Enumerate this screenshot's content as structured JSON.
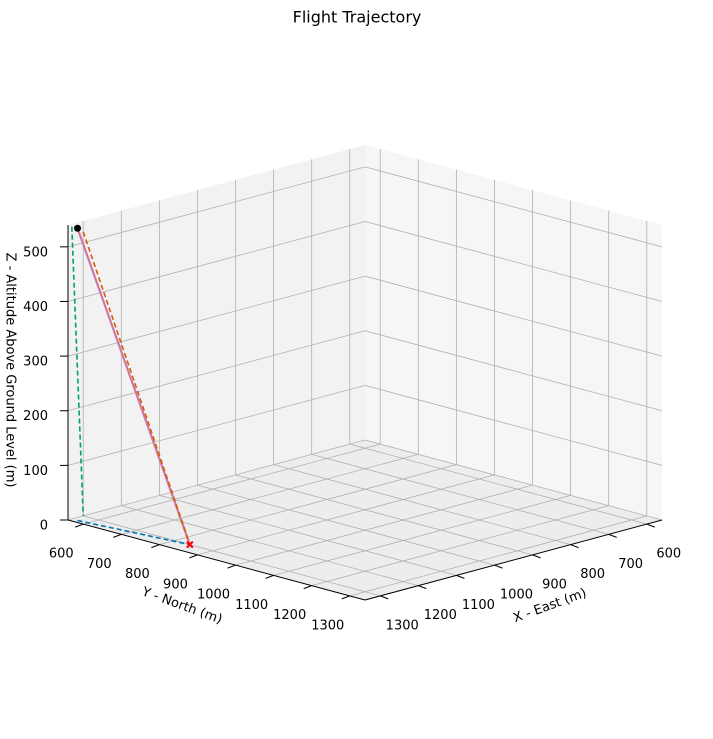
{
  "chart_data": {
    "type": "line3d",
    "title": "Flight Trajectory",
    "xlabel": "X - East (m)",
    "ylabel": "Y - North (m)",
    "zlabel": "Z - Altitude Above Ground Level (m)",
    "xlim": [
      560,
      1340
    ],
    "ylim": [
      560,
      1340
    ],
    "zlim": [
      0,
      540
    ],
    "xticks": [
      600,
      700,
      800,
      900,
      1000,
      1100,
      1200,
      1300
    ],
    "yticks": [
      600,
      700,
      800,
      900,
      1000,
      1100,
      1200,
      1300
    ],
    "zticks": [
      0,
      100,
      200,
      300,
      400,
      500
    ],
    "grid": true,
    "series": [
      {
        "color": "#cc79a7",
        "style": "solid",
        "x": [
          1330,
          1300
        ],
        "y": [
          575,
          840
        ],
        "z": [
          535,
          0
        ]
      },
      {
        "color": "#d55e00",
        "style": "dashed",
        "x": [
          1340,
          1300
        ],
        "y": [
          600,
          840
        ],
        "z": [
          535,
          0
        ]
      },
      {
        "color": "#009e73",
        "style": "dashed",
        "x": [
          1330,
          1300
        ],
        "y": [
          560,
          560
        ],
        "z": [
          535,
          0
        ]
      },
      {
        "color": "#0072b2",
        "style": "dashed",
        "x": [
          1330,
          1300
        ],
        "y": [
          575,
          840
        ],
        "z": [
          0,
          0
        ]
      }
    ],
    "points": [
      {
        "color": "#000000",
        "marker": "circle",
        "x": 1330,
        "y": 575,
        "z": 535
      },
      {
        "color": "#ff0000",
        "marker": "x",
        "x": 1300,
        "y": 840,
        "z": 0
      }
    ]
  }
}
